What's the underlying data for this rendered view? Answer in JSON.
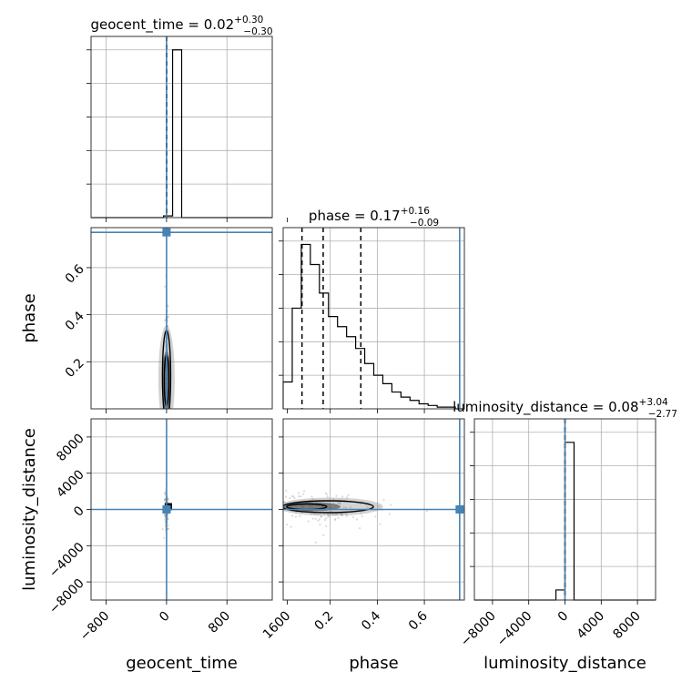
{
  "chart_data": {
    "type": "corner",
    "parameters": [
      "geocent_time",
      "phase",
      "luminosity_distance"
    ],
    "truth": {
      "geocent_time": 0,
      "phase": 0.75,
      "luminosity_distance": 0
    },
    "colors": {
      "truth": "#4682b4",
      "hist": "#000000",
      "grid": "#b0b0b0",
      "density": "#808080"
    },
    "titles": [
      {
        "param": "geocent_time",
        "label": "geocent_time = ",
        "median": "0.02",
        "plus": "+0.30",
        "minus": "−0.30"
      },
      {
        "param": "phase",
        "label": "phase = ",
        "median": "0.17",
        "plus": "+0.16",
        "minus": "−0.09"
      },
      {
        "param": "luminosity_distance",
        "label": "luminosity_distance = ",
        "median": "0.08",
        "plus": "+3.04",
        "minus": "−2.77"
      }
    ],
    "axes": {
      "geocent_time": {
        "range": [
          -1000,
          1400
        ],
        "ticks": [
          -800,
          0,
          800,
          1600
        ],
        "tick_labels": [
          "−800",
          "0",
          "800",
          "1600"
        ],
        "xlabel": "geocent_time"
      },
      "phase": {
        "range": [
          0.0,
          0.77
        ],
        "ticks": [
          0.2,
          0.4,
          0.6
        ],
        "tick_labels": [
          "0.2",
          "0.4",
          "0.6"
        ],
        "xlabel": "phase",
        "ylabel": "phase"
      },
      "luminosity_distance": {
        "range": [
          -10000,
          10000
        ],
        "ticks": [
          -8000,
          -4000,
          0,
          4000,
          8000
        ],
        "tick_labels": [
          "−8000",
          "−4000",
          "0",
          "4000",
          "8000"
        ],
        "xlabel": "luminosity_distance",
        "ylabel": "luminosity_distance"
      }
    },
    "quantiles": {
      "geocent_time": [
        -0.28,
        0.02,
        0.32
      ],
      "phase": [
        0.08,
        0.17,
        0.33
      ],
      "luminosity_distance": [
        -2.69,
        0.08,
        3.12
      ]
    },
    "histograms": {
      "geocent_time": {
        "edges": [
          -1000,
          -880,
          -760,
          -640,
          -520,
          -400,
          -280,
          -160,
          -40,
          80,
          200,
          320,
          440,
          560,
          680,
          800,
          920,
          1040,
          1160,
          1280,
          1400
        ],
        "counts": [
          0,
          0,
          0,
          0,
          0,
          0,
          0,
          0,
          0.01,
          1.0,
          0,
          0,
          0,
          0,
          0,
          0,
          0,
          0,
          0,
          0
        ]
      },
      "phase": {
        "edges": [
          0.0,
          0.0385,
          0.077,
          0.1155,
          0.154,
          0.1925,
          0.231,
          0.2695,
          0.308,
          0.3465,
          0.385,
          0.4235,
          0.462,
          0.5005,
          0.539,
          0.5775,
          0.616,
          0.6545,
          0.693,
          0.7315,
          0.77
        ],
        "counts": [
          0.16,
          0.6,
          0.98,
          0.86,
          0.69,
          0.55,
          0.49,
          0.43,
          0.36,
          0.27,
          0.2,
          0.15,
          0.1,
          0.07,
          0.05,
          0.03,
          0.02,
          0.01,
          0.01,
          0.0
        ]
      },
      "luminosity_distance": {
        "edges": [
          -10000,
          -9000,
          -8000,
          -7000,
          -6000,
          -5000,
          -4000,
          -3000,
          -2000,
          -1000,
          0,
          1000,
          2000,
          3000,
          4000,
          5000,
          6000,
          7000,
          8000,
          9000,
          10000
        ],
        "counts": [
          0,
          0,
          0,
          0,
          0,
          0,
          0,
          0,
          0,
          0.06,
          0.94,
          0,
          0,
          0,
          0,
          0,
          0,
          0,
          0,
          0
        ]
      }
    },
    "grid": true
  }
}
